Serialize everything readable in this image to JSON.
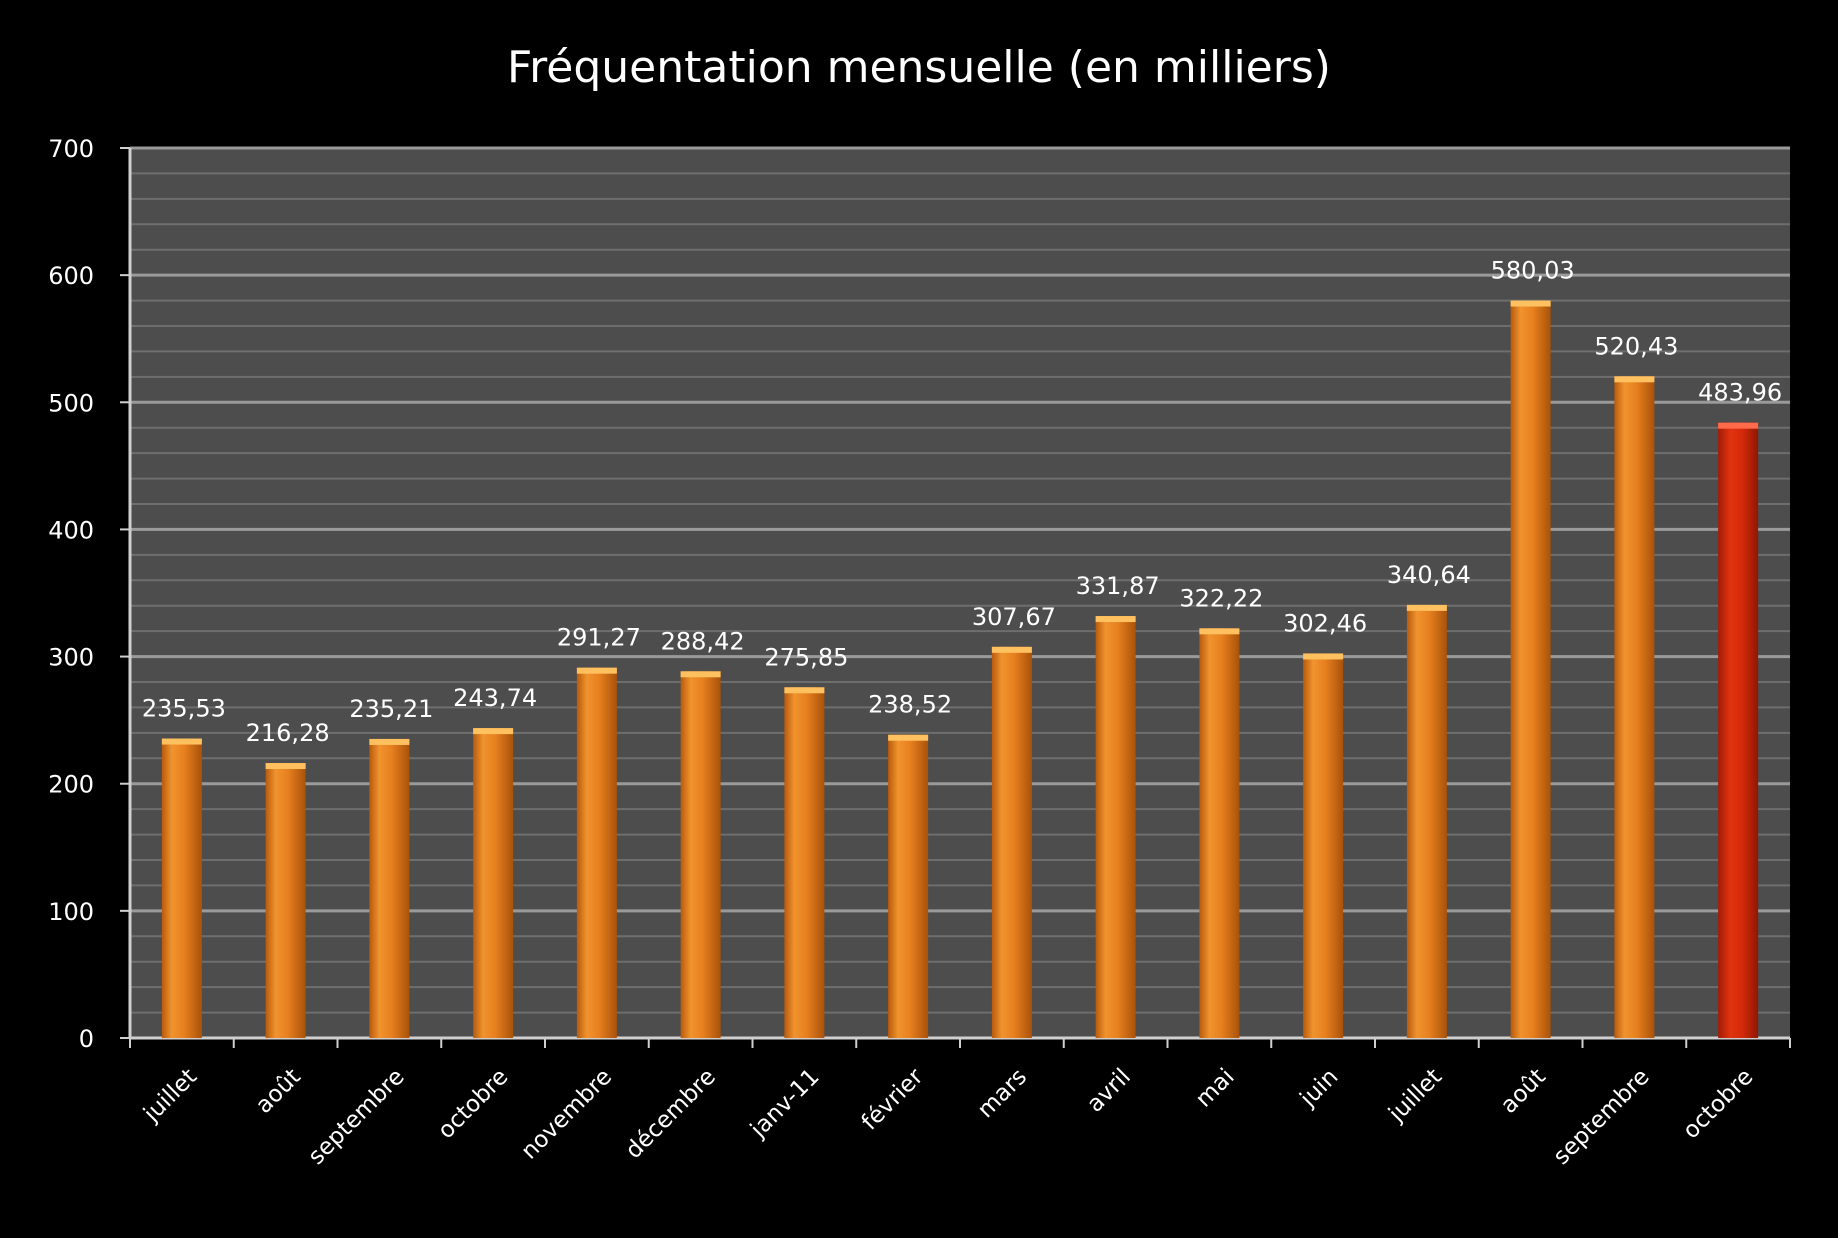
{
  "chart_data": {
    "type": "bar",
    "title": "Fréquentation mensuelle (en milliers)",
    "xlabel": "",
    "ylabel": "",
    "ylim": [
      0,
      700
    ],
    "y_ticks": [
      "0",
      "100",
      "200",
      "300",
      "400",
      "500",
      "600",
      "700"
    ],
    "grid": true,
    "categories": [
      "juillet",
      "août",
      "septembre",
      "octobre",
      "novembre",
      "décembre",
      "janv-11",
      "février",
      "mars",
      "avril",
      "mai",
      "juin",
      "juillet",
      "août",
      "septembre",
      "octobre"
    ],
    "values": [
      235.53,
      216.28,
      235.21,
      243.74,
      291.27,
      288.42,
      275.85,
      238.52,
      307.67,
      331.87,
      322.22,
      302.46,
      340.64,
      580.03,
      520.43,
      483.96
    ],
    "data_labels": [
      "235,53",
      "216,28",
      "235,21",
      "243,74",
      "291,27",
      "288,42",
      "275,85",
      "238,52",
      "307,67",
      "331,87",
      "322,22",
      "302,46",
      "340,64",
      "580,03",
      "520,43",
      "483,96"
    ],
    "colors": {
      "bar": "#e8801f",
      "highlight_bar": "#d42a0a",
      "plot_background": "#4d4d4d",
      "page_background": "#000000",
      "gridline": "#9a9a9a",
      "text": "#ffffff"
    },
    "highlight_index": 15
  }
}
